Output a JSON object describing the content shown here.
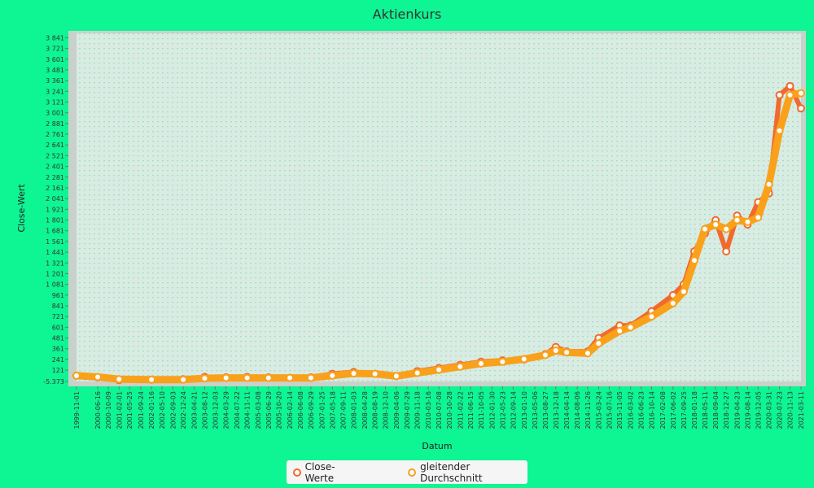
{
  "chart_data": {
    "type": "line",
    "title": "Aktienkurs",
    "xlabel": "Datum",
    "ylabel": "Close-Wert",
    "ylim": [
      -5.373,
      3890
    ],
    "y_ticks": [
      "-5.373",
      "121",
      "241",
      "361",
      "481",
      "601",
      "721",
      "841",
      "961",
      "1 081",
      "1 201",
      "1 321",
      "1 441",
      "1 561",
      "1 681",
      "1 801",
      "1 921",
      "2 041",
      "2 161",
      "2 281",
      "2 401",
      "2 521",
      "2 641",
      "2 761",
      "2 881",
      "3 001",
      "3 121",
      "3 241",
      "3 361",
      "3 481",
      "3 601",
      "3 721",
      "3 841"
    ],
    "x_ticks": [
      "1999-11-01",
      "2000-06-16",
      "2000-10-09",
      "2001-02-01",
      "2001-05-25",
      "2001-09-24",
      "2002-01-16",
      "2002-05-10",
      "2002-09-03",
      "2002-12-24",
      "2003-04-21",
      "2003-08-12",
      "2003-12-03",
      "2004-03-29",
      "2004-07-22",
      "2004-11-11",
      "2005-03-08",
      "2005-06-29",
      "2005-10-20",
      "2006-02-14",
      "2006-06-08",
      "2006-09-29",
      "2007-01-25",
      "2007-05-18",
      "2007-09-11",
      "2008-01-03",
      "2008-04-28",
      "2008-08-19",
      "2008-12-10",
      "2009-04-06",
      "2009-07-29",
      "2009-11-18",
      "2010-03-16",
      "2010-07-08",
      "2010-10-28",
      "2011-02-22",
      "2011-06-15",
      "2011-10-05",
      "2012-01-30",
      "2012-05-23",
      "2012-09-14",
      "2013-01-10",
      "2013-05-06",
      "2013-08-27",
      "2013-12-18",
      "2014-04-14",
      "2014-08-06",
      "2014-11-26",
      "2015-03-24",
      "2015-07-16",
      "2015-11-05",
      "2016-03-02",
      "2016-06-23",
      "2016-10-14",
      "2017-02-08",
      "2017-06-02",
      "2017-09-25",
      "2018-01-18",
      "2018-05-11",
      "2018-09-04",
      "2018-12-27",
      "2019-04-23",
      "2019-08-14",
      "2019-12-05",
      "2020-03-31",
      "2020-07-23",
      "2020-11-13",
      "2021-03-11"
    ],
    "grid": true,
    "legend_position": "bottom",
    "series": [
      {
        "name": "Close-Werte",
        "color": "#f06a2d",
        "x": [
          "1999-11-01",
          "2000-06-16",
          "2001-02-01",
          "2002-01-16",
          "2002-12-24",
          "2003-08-12",
          "2004-03-29",
          "2004-11-11",
          "2005-06-29",
          "2006-02-14",
          "2006-09-29",
          "2007-05-18",
          "2008-01-03",
          "2008-08-19",
          "2009-04-06",
          "2009-11-18",
          "2010-07-08",
          "2011-02-22",
          "2011-10-05",
          "2012-05-23",
          "2013-01-10",
          "2013-08-27",
          "2013-12-18",
          "2014-04-14",
          "2014-11-26",
          "2015-03-24",
          "2015-11-05",
          "2016-03-02",
          "2016-10-14",
          "2017-06-02",
          "2017-09-25",
          "2018-01-18",
          "2018-05-11",
          "2018-09-04",
          "2018-12-27",
          "2019-04-23",
          "2019-08-14",
          "2019-12-05",
          "2020-03-31",
          "2020-07-23",
          "2020-11-13",
          "2021-03-11"
        ],
        "values": [
          60,
          40,
          10,
          15,
          20,
          45,
          40,
          45,
          40,
          35,
          40,
          80,
          100,
          80,
          55,
          110,
          145,
          180,
          215,
          230,
          240,
          300,
          380,
          330,
          330,
          480,
          620,
          620,
          780,
          960,
          1080,
          1450,
          1650,
          1800,
          1450,
          1850,
          1750,
          2000,
          2100,
          3200,
          3300,
          3050
        ]
      },
      {
        "name": "gleitender Durchschnitt",
        "color": "#f9a11b",
        "x": [
          "1999-11-01",
          "2000-06-16",
          "2001-02-01",
          "2002-01-16",
          "2002-12-24",
          "2003-08-12",
          "2004-03-29",
          "2004-11-11",
          "2005-06-29",
          "2006-02-14",
          "2006-09-29",
          "2007-05-18",
          "2008-01-03",
          "2008-08-19",
          "2009-04-06",
          "2009-11-18",
          "2010-07-08",
          "2011-02-22",
          "2011-10-05",
          "2012-05-23",
          "2013-01-10",
          "2013-08-27",
          "2013-12-18",
          "2014-04-14",
          "2014-11-26",
          "2015-03-24",
          "2015-11-05",
          "2016-03-02",
          "2016-10-14",
          "2017-06-02",
          "2017-09-25",
          "2018-01-18",
          "2018-05-11",
          "2018-09-04",
          "2018-12-27",
          "2019-04-23",
          "2019-08-14",
          "2019-12-05",
          "2020-03-31",
          "2020-07-23",
          "2020-11-13",
          "2021-03-11"
        ],
        "values": [
          60,
          45,
          20,
          15,
          15,
          30,
          35,
          35,
          35,
          35,
          35,
          60,
          85,
          80,
          55,
          90,
          125,
          160,
          195,
          215,
          245,
          290,
          340,
          320,
          310,
          420,
          560,
          600,
          720,
          870,
          1000,
          1350,
          1700,
          1750,
          1700,
          1800,
          1780,
          1830,
          2200,
          2800,
          3200,
          3220
        ]
      }
    ]
  }
}
